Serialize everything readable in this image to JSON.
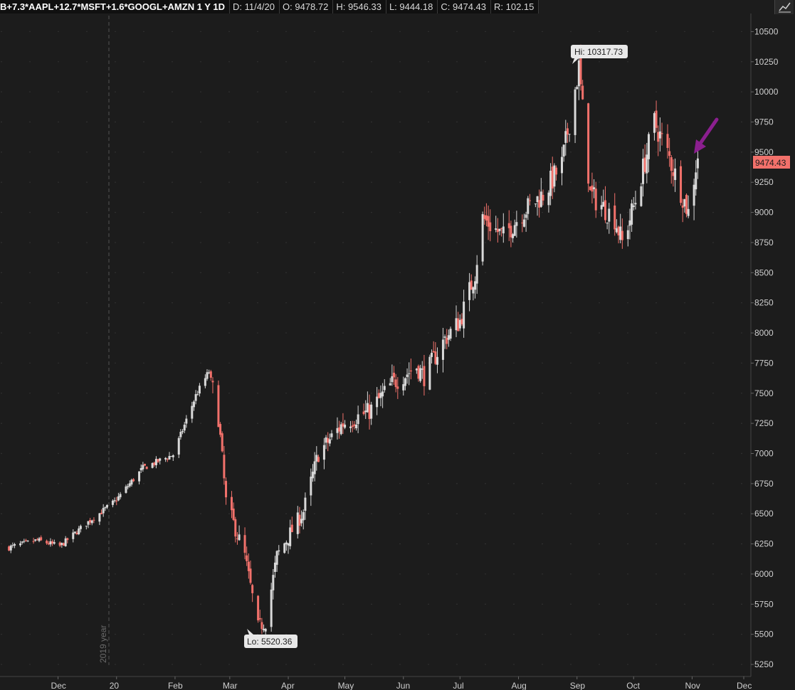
{
  "header": {
    "symbol": "B+7.3*AAPL+12.7*MSFT+1.6*GOOGL+AMZN 1 Y 1D",
    "date": "D: 11/4/20",
    "open": "O: 9478.72",
    "high": "H: 9546.33",
    "low": "L: 9444.18",
    "close": "C: 9474.43",
    "range": "R: 102.15"
  },
  "colors": {
    "background": "#1c1c1c",
    "up": "#d9d9d9",
    "down": "#f2716b",
    "price_label": "#f2716b",
    "arrow": "#8b1f8f"
  },
  "chart_data": {
    "type": "candlestick",
    "ylim": [
      5150,
      10650
    ],
    "yticks": [
      "5250",
      "5500",
      "5750",
      "6000",
      "6250",
      "6500",
      "6750",
      "7000",
      "7250",
      "7500",
      "7750",
      "8000",
      "8250",
      "8500",
      "8750",
      "9000",
      "9250",
      "9500",
      "9750",
      "10000",
      "10250",
      "10500"
    ],
    "xticks": [
      "Dec",
      "20",
      "Feb",
      "Mar",
      "Apr",
      "May",
      "Jun",
      "Jul",
      "Aug",
      "Sep",
      "Oct",
      "Nov",
      "Dec"
    ],
    "year_marker": "2019 year",
    "current_price": "9474.43",
    "annotations": {
      "high": "Hi: 10317.73",
      "low": "Lo: 5520.36"
    },
    "close_path": [
      [
        "2019-11-05",
        6220
      ],
      [
        "2019-11-20",
        6280
      ],
      [
        "2019-12-02",
        6230
      ],
      [
        "2019-12-16",
        6420
      ],
      [
        "2019-12-31",
        6600
      ],
      [
        "2020-01-15",
        6880
      ],
      [
        "2020-01-31",
        6990
      ],
      [
        "2020-02-12",
        7480
      ],
      [
        "2020-02-19",
        7680
      ],
      [
        "2020-02-24",
        7300
      ],
      [
        "2020-02-28",
        6600
      ],
      [
        "2020-03-09",
        6150
      ],
      [
        "2020-03-16",
        5560
      ],
      [
        "2020-03-20",
        5600
      ],
      [
        "2020-03-26",
        6150
      ],
      [
        "2020-04-09",
        6520
      ],
      [
        "2020-04-17",
        7000
      ],
      [
        "2020-04-30",
        7250
      ],
      [
        "2020-05-14",
        7350
      ],
      [
        "2020-05-26",
        7580
      ],
      [
        "2020-06-08",
        7720
      ],
      [
        "2020-06-12",
        7640
      ],
      [
        "2020-06-23",
        7950
      ],
      [
        "2020-07-01",
        8100
      ],
      [
        "2020-07-09",
        8500
      ],
      [
        "2020-07-13",
        8950
      ],
      [
        "2020-07-24",
        8800
      ],
      [
        "2020-08-03",
        9000
      ],
      [
        "2020-08-14",
        9150
      ],
      [
        "2020-08-24",
        9400
      ],
      [
        "2020-09-02",
        10200
      ],
      [
        "2020-09-08",
        9150
      ],
      [
        "2020-09-21",
        8950
      ],
      [
        "2020-09-25",
        8750
      ],
      [
        "2020-10-02",
        9100
      ],
      [
        "2020-10-12",
        9750
      ],
      [
        "2020-10-20",
        9450
      ],
      [
        "2020-10-30",
        9000
      ],
      [
        "2020-11-04",
        9474
      ]
    ]
  }
}
